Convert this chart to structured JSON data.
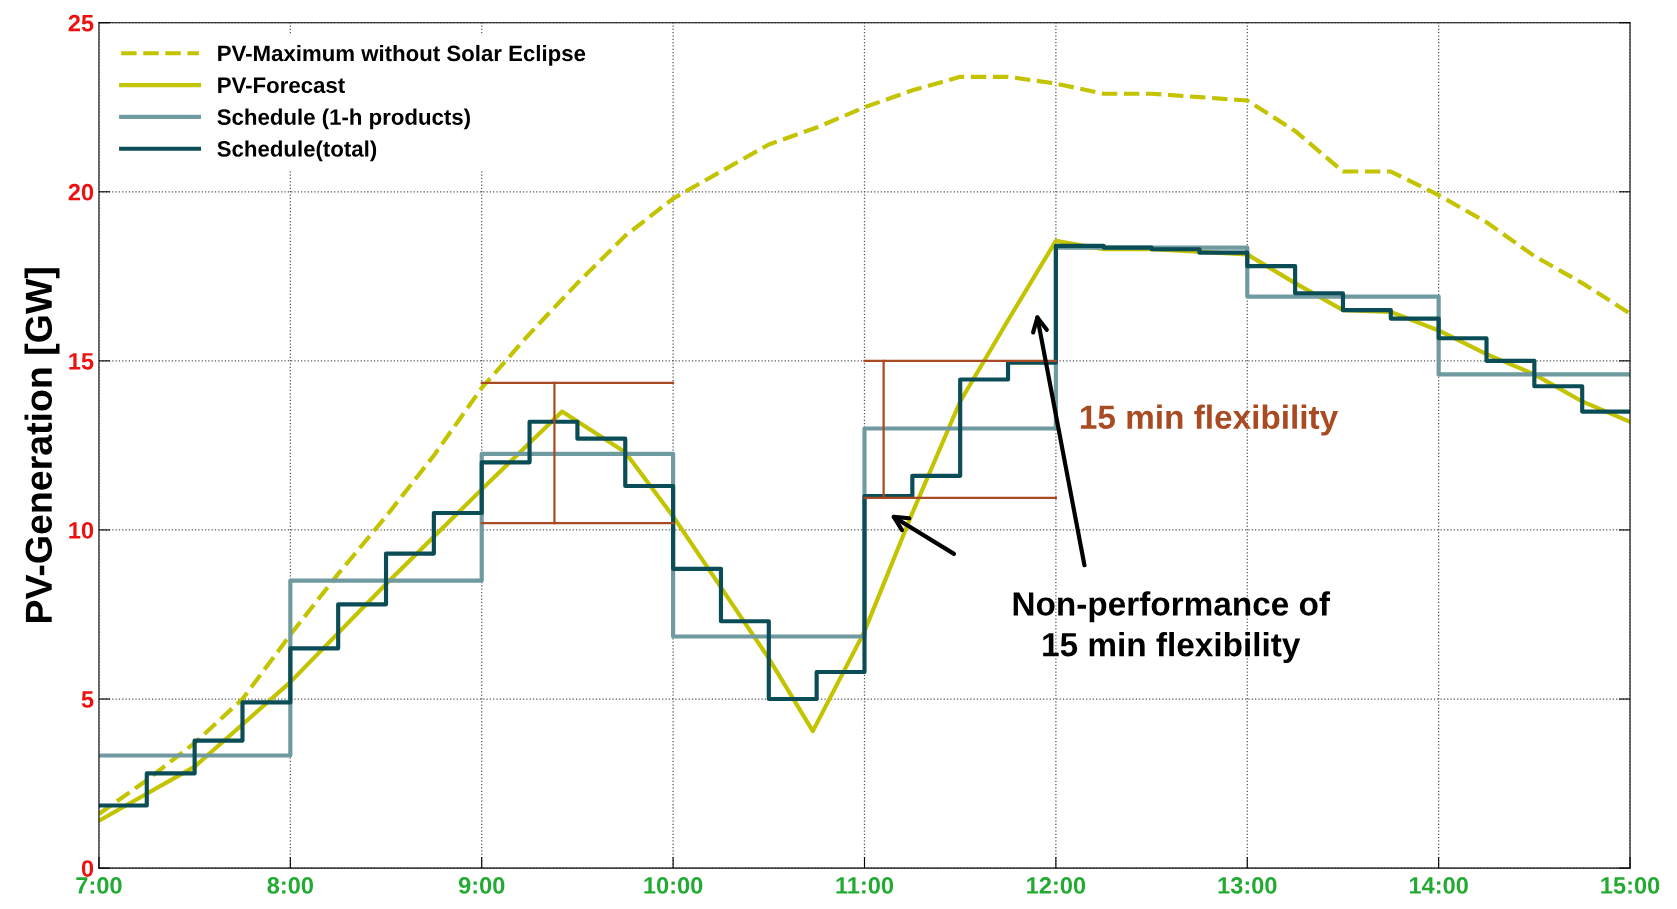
{
  "chart_data": {
    "type": "line",
    "ylabel": "PV-Generation [GW]",
    "xlim": [
      7,
      15
    ],
    "ylim": [
      0,
      25
    ],
    "xticks": [
      {
        "value": 7,
        "label": "7:00"
      },
      {
        "value": 8,
        "label": "8:00"
      },
      {
        "value": 9,
        "label": "9:00"
      },
      {
        "value": 10,
        "label": "10:00"
      },
      {
        "value": 11,
        "label": "11:00"
      },
      {
        "value": 12,
        "label": "12:00"
      },
      {
        "value": 13,
        "label": "13:00"
      },
      {
        "value": 14,
        "label": "14:00"
      },
      {
        "value": 15,
        "label": "15:00"
      }
    ],
    "yticks": [
      0,
      5,
      10,
      15,
      20,
      25
    ],
    "grid": true,
    "legend": "top left",
    "series": [
      {
        "name": "PV-Maximum without Solar Eclipse",
        "line_style": "dashed",
        "color": "#c3c300",
        "x": [
          7,
          7.25,
          7.5,
          7.75,
          8,
          8.25,
          8.5,
          8.75,
          9,
          9.25,
          9.5,
          9.75,
          10,
          10.25,
          10.5,
          10.75,
          11,
          11.25,
          11.5,
          11.75,
          12,
          12.25,
          12.5,
          12.75,
          13,
          13.25,
          13.5,
          13.75,
          14,
          14.25,
          14.5,
          14.75,
          15
        ],
        "values": [
          1.6,
          2.6,
          3.7,
          5.0,
          6.9,
          8.7,
          10.4,
          12.2,
          14.2,
          15.8,
          17.3,
          18.7,
          19.8,
          20.6,
          21.4,
          21.9,
          22.5,
          23.0,
          23.4,
          23.4,
          23.2,
          22.9,
          22.9,
          22.8,
          22.7,
          21.8,
          20.6,
          20.6,
          19.9,
          19.1,
          18.1,
          17.3,
          16.4
        ]
      },
      {
        "name": "PV-Forecast",
        "line_style": "solid",
        "color": "#c3c300",
        "x": [
          7,
          7.5,
          8,
          8.5,
          9,
          9.42,
          9.75,
          10,
          10.25,
          10.5,
          10.73,
          11,
          11.25,
          11.5,
          11.75,
          12,
          12.25,
          12.5,
          13,
          13.25,
          13.5,
          13.75,
          14,
          14.25,
          14.5,
          14.75,
          15
        ],
        "values": [
          1.4,
          3.0,
          5.5,
          8.4,
          11.2,
          13.5,
          12.3,
          10.4,
          8.3,
          6.2,
          4.05,
          7.0,
          10.5,
          13.8,
          16.2,
          18.55,
          18.3,
          18.3,
          18.15,
          17.3,
          16.5,
          16.45,
          15.9,
          15.2,
          14.6,
          13.8,
          13.2
        ]
      },
      {
        "name": "Schedule (1-h products)",
        "type": "step",
        "line_style": "solid",
        "color": "#6e9aa0",
        "x": [
          7,
          8,
          9,
          10,
          11,
          12,
          13,
          14,
          15
        ],
        "values": [
          3.33,
          8.5,
          12.25,
          6.85,
          13.0,
          18.35,
          16.9,
          14.6,
          14.6
        ]
      },
      {
        "name": "Schedule(total)",
        "type": "step",
        "line_style": "solid",
        "color": "#0b4d57",
        "x": [
          7,
          7.25,
          7.5,
          7.75,
          8,
          8.25,
          8.5,
          8.75,
          9,
          9.25,
          9.5,
          9.75,
          10,
          10.25,
          10.5,
          10.75,
          11,
          11.25,
          11.5,
          11.75,
          12,
          12.25,
          12.5,
          12.75,
          13,
          13.25,
          13.5,
          13.75,
          14,
          14.25,
          14.5,
          14.75,
          15
        ],
        "values": [
          1.85,
          2.8,
          3.77,
          4.9,
          6.5,
          7.8,
          9.3,
          10.5,
          12.0,
          13.2,
          12.7,
          11.3,
          8.85,
          7.3,
          5.0,
          5.8,
          11.0,
          11.6,
          14.45,
          14.95,
          18.4,
          18.35,
          18.3,
          18.2,
          17.8,
          17.0,
          16.5,
          16.25,
          15.67,
          15.0,
          14.25,
          13.5,
          13.5
        ]
      },
      {
        "type": "line",
        "line_style": "solid",
        "color": "#a84a22",
        "x": [
          9,
          10
        ],
        "values": [
          14.35,
          14.35
        ]
      },
      {
        "type": "line",
        "line_style": "solid",
        "color": "#a84a22",
        "x": [
          9,
          10
        ],
        "values": [
          10.2,
          10.2
        ]
      },
      {
        "type": "line",
        "line_style": "solid",
        "color": "#a84a22",
        "x": [
          9.38,
          9.38,
          9.38
        ],
        "values": [
          14.35,
          12.25,
          10.2
        ]
      },
      {
        "type": "line",
        "line_style": "solid",
        "color": "#a84a22",
        "x": [
          11,
          12
        ],
        "values": [
          15.0,
          15.0
        ]
      },
      {
        "type": "line",
        "line_style": "solid",
        "color": "#a84a22",
        "x": [
          11,
          12
        ],
        "values": [
          10.95,
          10.95
        ]
      },
      {
        "type": "line",
        "line_style": "solid",
        "color": "#a84a22",
        "x": [
          11.1,
          11.1,
          11.1
        ],
        "values": [
          15.0,
          13.0,
          10.95
        ]
      }
    ],
    "annotations": [
      "15 min flexibility",
      "Non-performance of\n15 min flexibility"
    ]
  }
}
